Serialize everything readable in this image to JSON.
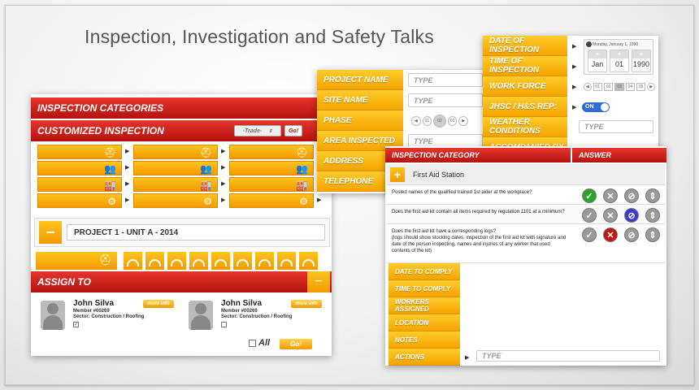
{
  "title": "Inspection, Investigation and Safety Talks",
  "left": {
    "inspection_categories": "INSPECTION CATEGORIES",
    "customized_inspection": "CUSTOMIZED INSPECTION",
    "trade_select": "-Trade-",
    "go_label": "Go!",
    "project_label": "PROJECT 1 - UNIT A - 2014",
    "minus": "−",
    "assign_to": "ASSIGN TO",
    "people": [
      {
        "name": "John Silva",
        "member": "Member #00269",
        "sector": "Sector: Construction / Roofing",
        "more": "more info",
        "checked": true
      },
      {
        "name": "John Silva",
        "member": "Member #00269",
        "sector": "Sector: Construction / Roofing",
        "more": "more info",
        "checked": false
      }
    ],
    "all_label": "All",
    "go_bottom": "Go!",
    "tile_icons": [
      "worker-icon",
      "team-icon",
      "factory-icon",
      "gear-icon"
    ]
  },
  "middle": {
    "rows": [
      {
        "label": "PROJECT NAME",
        "placeholder": "TYPE"
      },
      {
        "label": "SITE NAME",
        "placeholder": "TYPE"
      },
      {
        "label": "PHASE",
        "phases": [
          "01",
          "02",
          "03"
        ]
      },
      {
        "label": "AREA INSPECTED",
        "placeholder": "TYPE"
      },
      {
        "label": "ADDRESS",
        "placeholder": ""
      },
      {
        "label": "TELEPHONE",
        "placeholder": ""
      }
    ]
  },
  "right": {
    "rows": [
      {
        "label": "DATE OF INSPECTION"
      },
      {
        "label": "TIME OF INSPECTION"
      },
      {
        "label": "WORK FORCE"
      },
      {
        "label": "JHSC / H&S REP:"
      },
      {
        "label": "WEATHER CONDITIONS"
      },
      {
        "label": "ACCOMPANIED BY"
      }
    ],
    "date_header": "Monday, January 1, 1990",
    "date_values": [
      "Jan",
      "01",
      "1990"
    ],
    "workforce": [
      "01",
      "02",
      "03",
      "04",
      "05"
    ],
    "toggle": "ON",
    "weather_placeholder": "TYPE"
  },
  "front": {
    "col_category": "INSPECTION CATEGORY",
    "col_answer": "ANSWER",
    "section": "First Aid Station",
    "questions": [
      {
        "text": "Posted names of the qualified trained 1st aider at the workplace?",
        "selected": "yes"
      },
      {
        "text": "Does the first aid kit contain all items required by regulation 1101 at a minimum?",
        "selected": "na"
      },
      {
        "text_lines": [
          "Does the first aid kit have a corresponding logs?",
          "(logs should show stocking dates, inspection of the first aid kit with signature and",
          "date of the person inspecting, names and injuries of any worker that used",
          "contents of the kit)"
        ],
        "selected": "no"
      }
    ],
    "actions": [
      "DATE TO COMPLY",
      "TIME TO COMPLY",
      "WORKERS ASSIGNED",
      "LOCATION",
      "NOTES",
      "ACTIONS"
    ],
    "actions_placeholder": "TYPE"
  }
}
